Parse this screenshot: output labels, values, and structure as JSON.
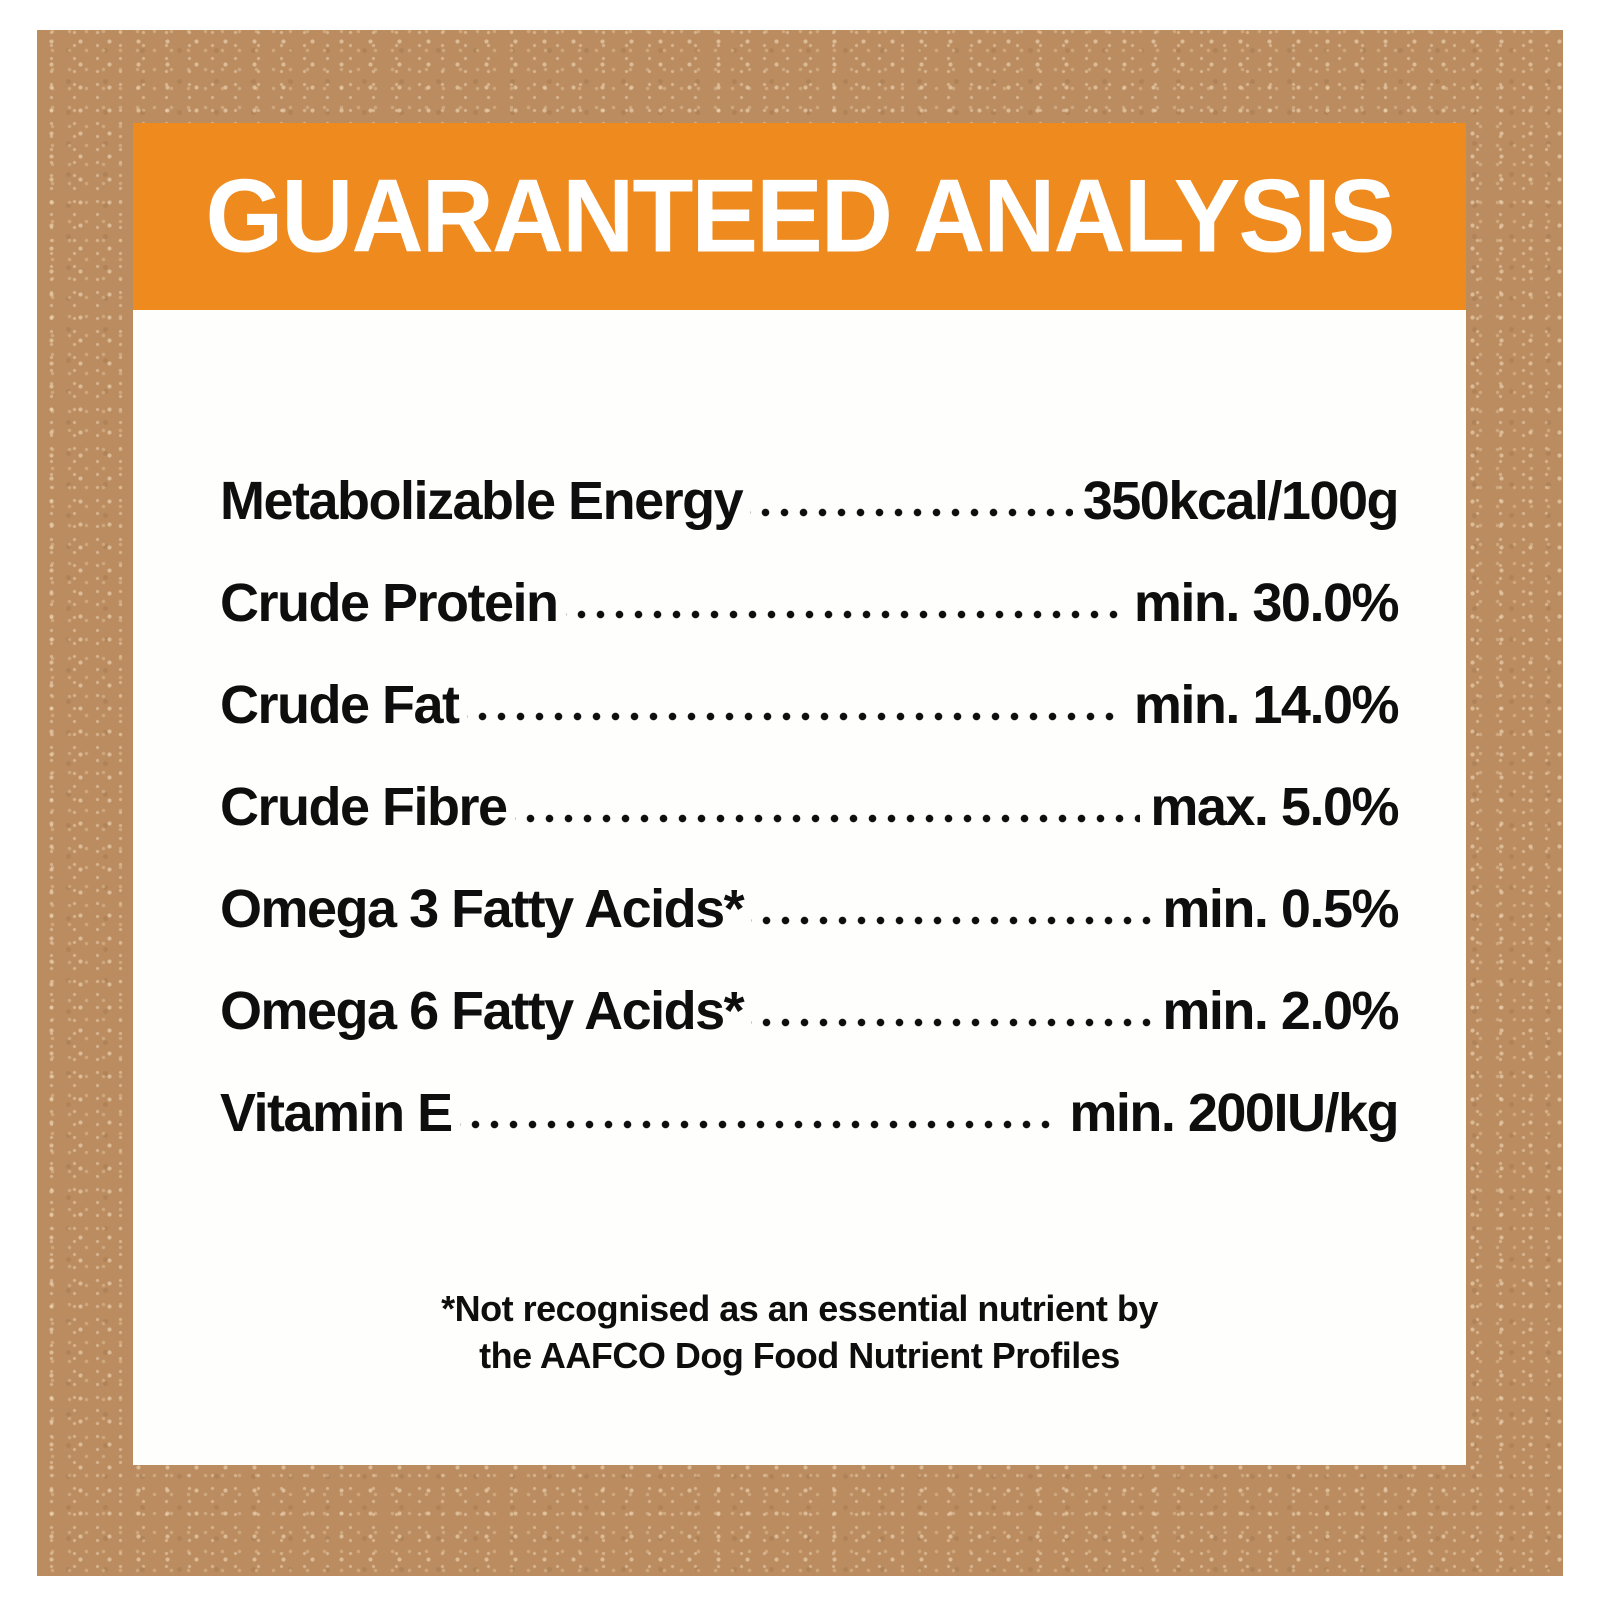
{
  "title": "GUARANTEED ANALYSIS",
  "colors": {
    "header_bg": "#EE8A1E",
    "header_text": "#FFFFFF",
    "text": "#0E0E0E",
    "frame_bg": "#BB8C60",
    "panel_bg": "#FEFEFD"
  },
  "rows": [
    {
      "label": "Metabolizable Energy",
      "value": "350kcal/100g"
    },
    {
      "label": "Crude Protein",
      "value": "min. 30.0%"
    },
    {
      "label": "Crude Fat",
      "value": "min. 14.0%"
    },
    {
      "label": "Crude Fibre",
      "value": "max. 5.0%"
    },
    {
      "label": "Omega 3 Fatty Acids*",
      "value": "min. 0.5%"
    },
    {
      "label": "Omega 6 Fatty Acids*",
      "value": "min. 2.0%"
    },
    {
      "label": "Vitamin E",
      "value": "min. 200IU/kg"
    }
  ],
  "footnote": {
    "line1": "*Not recognised as an essential nutrient by",
    "line2": "the AAFCO Dog Food Nutrient Profiles"
  }
}
